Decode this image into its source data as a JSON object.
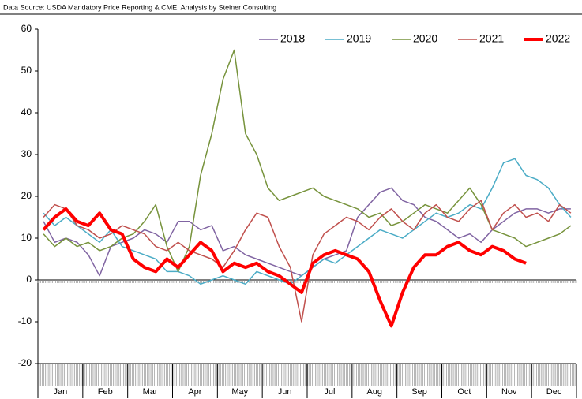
{
  "chart_data": {
    "type": "line",
    "source": "Data Source: USDA Mandatory Price Reporting & CME.  Analysis by Steiner Consulting",
    "categories": [
      null,
      "Jan",
      null,
      null,
      null,
      "Feb",
      null,
      null,
      null,
      "Mar",
      null,
      null,
      null,
      "Apr",
      null,
      null,
      null,
      "May",
      null,
      null,
      null,
      "Jun",
      null,
      null,
      null,
      "Jul",
      null,
      null,
      null,
      "Aug",
      null,
      null,
      null,
      "Sep",
      null,
      null,
      null,
      "Oct",
      null,
      null,
      null,
      "Nov",
      null,
      null,
      null,
      "Dec",
      null,
      null
    ],
    "ylim": [
      -20,
      60
    ],
    "yticks": [
      -20,
      -10,
      0,
      10,
      20,
      30,
      40,
      50,
      60
    ],
    "legend": "top-right",
    "series": [
      {
        "name": "2018",
        "color": "#8064a2",
        "width": 1.5,
        "values": [
          14,
          9,
          10,
          9,
          6,
          1,
          8,
          9,
          10,
          12,
          11,
          9,
          14,
          14,
          12,
          13,
          7,
          8,
          6,
          5,
          4,
          3,
          2,
          1,
          3,
          5,
          6,
          7,
          15,
          18,
          21,
          22,
          19,
          18,
          15,
          14,
          12,
          10,
          11,
          9,
          12,
          14,
          16,
          17,
          17,
          16,
          17,
          17
        ]
      },
      {
        "name": "2019",
        "color": "#4bacc6",
        "width": 1.5,
        "values": [
          16,
          13,
          15,
          13,
          11,
          9,
          12,
          8,
          7,
          6,
          5,
          2,
          2,
          1,
          -1,
          0,
          1,
          0,
          -1,
          2,
          1,
          0,
          -1,
          1,
          3,
          5,
          4,
          6,
          8,
          10,
          12,
          11,
          10,
          12,
          14,
          16,
          15,
          16,
          18,
          17,
          22,
          28,
          29,
          25,
          24,
          22,
          18,
          15
        ]
      },
      {
        "name": "2020",
        "color": "#77933c",
        "width": 1.5,
        "values": [
          11,
          8,
          10,
          8,
          9,
          7,
          8,
          10,
          11,
          14,
          18,
          8,
          2,
          8,
          25,
          35,
          48,
          55,
          35,
          30,
          22,
          19,
          20,
          21,
          22,
          20,
          19,
          18,
          17,
          15,
          16,
          13,
          14,
          16,
          18,
          17,
          16,
          19,
          22,
          18,
          12,
          11,
          10,
          8,
          9,
          10,
          11,
          13
        ]
      },
      {
        "name": "2021",
        "color": "#c0504d",
        "width": 1.5,
        "values": [
          15,
          18,
          17,
          13,
          12,
          10,
          11,
          13,
          12,
          11,
          8,
          7,
          9,
          7,
          6,
          5,
          3,
          7,
          12,
          16,
          15,
          8,
          3,
          -10,
          6,
          11,
          13,
          15,
          14,
          12,
          15,
          17,
          14,
          12,
          16,
          18,
          15,
          14,
          17,
          19,
          12,
          16,
          18,
          15,
          16,
          14,
          18,
          16
        ]
      },
      {
        "name": "2022",
        "color": "#ff0000",
        "width": 4,
        "values": [
          12,
          15,
          17,
          14,
          13,
          16,
          12,
          11,
          5,
          3,
          2,
          5,
          3,
          6,
          9,
          7,
          2,
          4,
          3,
          4,
          2,
          1,
          -1,
          -3,
          4,
          6,
          7,
          6,
          5,
          2,
          -5,
          -11,
          -3,
          3,
          6,
          6,
          8,
          9,
          7,
          6,
          8,
          7,
          5,
          4,
          null,
          null,
          null,
          null
        ]
      }
    ]
  }
}
